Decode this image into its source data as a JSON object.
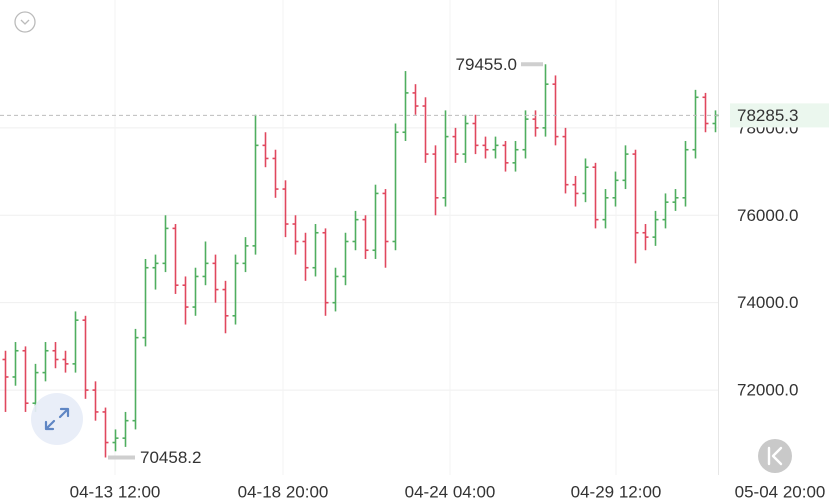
{
  "chart_data": {
    "type": "ohlc",
    "up_color": "#4fae5f",
    "down_color": "#e0475e",
    "grid": true,
    "ylim": [
      70057,
      80926
    ],
    "yticks": [
      {
        "value": 72000,
        "label": "72000.0"
      },
      {
        "value": 74000,
        "label": "74000.0"
      },
      {
        "value": 76000,
        "label": "76000.0"
      },
      {
        "value": 78000,
        "label": "78000.0"
      }
    ],
    "xlim": [
      -0.5,
      82.4
    ],
    "xticks": [
      {
        "value": 11,
        "label": "04-13 12:00"
      },
      {
        "value": 27.8,
        "label": "04-18 20:00"
      },
      {
        "value": 44.5,
        "label": "04-24 04:00"
      },
      {
        "value": 61.1,
        "label": "04-29 12:00"
      },
      {
        "value": 77.5,
        "label": "05-04 20:00"
      }
    ],
    "open": [
      72700,
      72300,
      72900,
      71700,
      72400,
      72900,
      72700,
      72600,
      73600,
      72000,
      71500,
      70800,
      70900,
      71300,
      73200,
      74800,
      74900,
      75700,
      74400,
      73900,
      74600,
      74900,
      74300,
      73700,
      74900,
      75300,
      77600,
      77300,
      76600,
      75800,
      75400,
      74800,
      75600,
      74000,
      74600,
      75400,
      75900,
      75200,
      76500,
      75400,
      77900,
      78800,
      78500,
      77400,
      76400,
      77800,
      77400,
      78100,
      77600,
      77500,
      77600,
      77200,
      77500,
      78200,
      78000,
      79000,
      77800,
      76700,
      76500,
      77100,
      75900,
      76400,
      76800,
      77400,
      75600,
      75500,
      75900,
      76300,
      76400,
      77500,
      78700,
      78100
    ],
    "high": [
      72900,
      73100,
      73000,
      72600,
      73100,
      73100,
      72900,
      73800,
      73700,
      72200,
      71600,
      71100,
      71500,
      73400,
      75000,
      75100,
      76000,
      75800,
      74600,
      74800,
      75400,
      75100,
      74500,
      75100,
      75500,
      78300,
      77900,
      77500,
      76800,
      76000,
      75600,
      75800,
      75700,
      74800,
      75600,
      76100,
      76000,
      76700,
      76600,
      78100,
      79300,
      79000,
      78700,
      77600,
      78400,
      78000,
      78300,
      78300,
      77800,
      77800,
      77700,
      77700,
      78400,
      78400,
      79455,
      79200,
      78000,
      76900,
      77300,
      77200,
      76600,
      77000,
      77600,
      77500,
      75800,
      76100,
      76500,
      76600,
      77700,
      78870,
      78800,
      78400
    ],
    "low": [
      71500,
      72100,
      71500,
      71500,
      72200,
      72500,
      72400,
      72400,
      71800,
      71300,
      70458,
      70600,
      70700,
      71100,
      73000,
      74300,
      74700,
      74200,
      73500,
      73700,
      74400,
      74000,
      73300,
      73500,
      74700,
      75100,
      77100,
      76400,
      75500,
      75100,
      74500,
      74600,
      73700,
      73800,
      74400,
      75200,
      75000,
      75000,
      74800,
      75200,
      77700,
      78300,
      77200,
      76000,
      76200,
      77200,
      77200,
      77400,
      77300,
      77300,
      77000,
      77000,
      77300,
      77800,
      77800,
      77600,
      76500,
      76200,
      76300,
      75700,
      75700,
      76200,
      76600,
      74900,
      75200,
      75300,
      75700,
      76100,
      76200,
      77300,
      77900,
      77900
    ],
    "close": [
      72300,
      72900,
      71700,
      72400,
      72900,
      72700,
      72600,
      73600,
      72000,
      71500,
      70800,
      70900,
      71300,
      73200,
      74800,
      74900,
      75700,
      74400,
      73900,
      74600,
      74900,
      74300,
      73700,
      74900,
      75300,
      77600,
      77300,
      76600,
      75800,
      75400,
      74800,
      75600,
      74000,
      74600,
      75400,
      75900,
      75200,
      76500,
      75400,
      77900,
      78800,
      78500,
      77400,
      76400,
      77800,
      77400,
      78100,
      77600,
      77500,
      77600,
      77200,
      77500,
      78200,
      78000,
      79000,
      77800,
      76700,
      76500,
      77100,
      75900,
      76400,
      76800,
      77400,
      75600,
      75500,
      75900,
      76300,
      76400,
      77500,
      78700,
      78100,
      78285.3
    ],
    "annotations": [
      {
        "label": "79455.0",
        "value": 79455
      },
      {
        "label": "70458.2",
        "value": 70458.2
      }
    ],
    "last_price": {
      "label": "78285.3",
      "value": 78285.3,
      "color": "#3fae5a"
    }
  }
}
